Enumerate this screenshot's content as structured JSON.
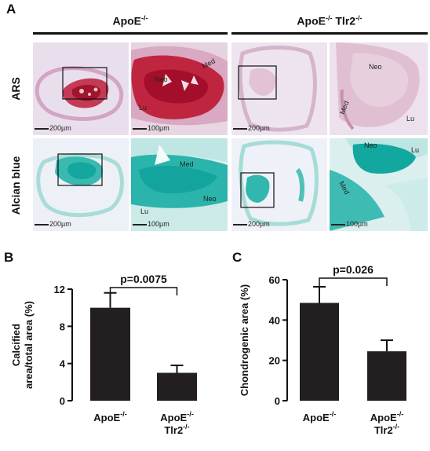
{
  "panels": {
    "a": {
      "letter": "A"
    },
    "b": {
      "letter": "B"
    },
    "c": {
      "letter": "C"
    }
  },
  "groups": {
    "g1": {
      "base": "ApoE",
      "sup": "-/-"
    },
    "g2": {
      "base": "ApoE",
      "sup": "-/-",
      "base2": " Tlr2",
      "sup2": "-/-"
    }
  },
  "rows": {
    "ars": "ARS",
    "alcian": "Alcian blue"
  },
  "tiles": {
    "t1": {
      "scale": "200µm"
    },
    "t2": {
      "scale": "100µm",
      "neo": "Neo",
      "med": "Med",
      "lu": "Lu"
    },
    "t3": {
      "scale": "200µm"
    },
    "t4": {
      "neo": "Neo",
      "med": "Med",
      "lu": "Lu"
    },
    "t5": {
      "scale": "200µm"
    },
    "t6": {
      "scale": "100µm",
      "neo": "Neo",
      "med": "Med",
      "lu": "Lu"
    },
    "t7": {
      "scale": "200µm"
    },
    "t8": {
      "scale": "100µm",
      "neo": "Neo",
      "med": "Med",
      "lu": "Lu"
    }
  },
  "chart_data": [
    {
      "type": "bar",
      "panel": "B",
      "ylabel_line1": "Calcified",
      "ylabel_line2": "area/total area (%)",
      "ylim": [
        0,
        12
      ],
      "yticks": [
        0,
        4,
        8,
        12
      ],
      "categories": [
        {
          "base": "ApoE",
          "sup": "-/-",
          "base2": "",
          "sup2": ""
        },
        {
          "base": "ApoE",
          "sup": "-/-",
          "base2": "Tlr2",
          "sup2": "-/-"
        }
      ],
      "values": [
        10.0,
        3.0
      ],
      "errors": [
        1.6,
        0.8
      ],
      "annotation": "p=0.0075",
      "color": "#231f20"
    },
    {
      "type": "bar",
      "panel": "C",
      "ylabel_line1": "Chondrogenic area (%)",
      "ylabel_line2": "",
      "ylim": [
        0,
        60
      ],
      "yticks": [
        0,
        20,
        40,
        60
      ],
      "categories": [
        {
          "base": "ApoE",
          "sup": "-/-",
          "base2": "",
          "sup2": ""
        },
        {
          "base": "ApoE",
          "sup": "-/-",
          "base2": "Tlr2",
          "sup2": "-/-"
        }
      ],
      "values": [
        48.5,
        24.5
      ],
      "errors": [
        8.0,
        5.5
      ],
      "annotation": "p=0.026",
      "color": "#231f20"
    }
  ],
  "colors": {
    "ars_bg": "#e9dfec",
    "ars_tissue": "#d7a9c6",
    "ars_stain": "#b81e3a",
    "alcian_bg": "#eef0f7",
    "alcian_tissue": "#9fd8d6",
    "alcian_stain": "#1fb5ae"
  }
}
